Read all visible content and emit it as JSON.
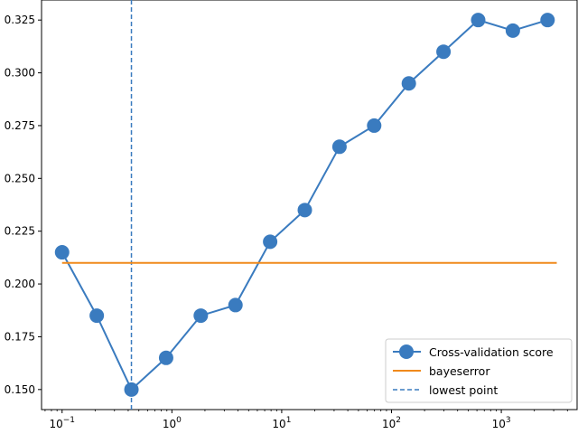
{
  "chart_data": {
    "type": "line",
    "xscale": "log",
    "xlim": [
      0.065,
      4900
    ],
    "ylim": [
      0.1405,
      0.3345
    ],
    "x_ticks": [
      {
        "value": 0.1,
        "base": "10",
        "exp": "−1"
      },
      {
        "value": 1,
        "base": "10",
        "exp": "0"
      },
      {
        "value": 10,
        "base": "10",
        "exp": "1"
      },
      {
        "value": 100,
        "base": "10",
        "exp": "2"
      },
      {
        "value": 1000,
        "base": "10",
        "exp": "3"
      }
    ],
    "y_ticks": [
      0.15,
      0.175,
      0.2,
      0.225,
      0.25,
      0.275,
      0.3,
      0.325
    ],
    "y_tick_labels": [
      "0.150",
      "0.175",
      "0.200",
      "0.225",
      "0.250",
      "0.275",
      "0.300",
      "0.325"
    ],
    "series": [
      {
        "name": "Cross-validation score",
        "color": "#3a7bbf",
        "x": [
          0.1,
          0.2069,
          0.4281,
          0.8859,
          1.833,
          3.793,
          7.848,
          16.24,
          33.6,
          69.52,
          143.8,
          297.6,
          615.8,
          1274,
          2637
        ],
        "y": [
          0.215,
          0.185,
          0.15,
          0.165,
          0.185,
          0.19,
          0.22,
          0.235,
          0.265,
          0.275,
          0.295,
          0.31,
          0.325,
          0.32,
          0.325
        ]
      },
      {
        "name": "bayeserror",
        "color": "#f08a1c",
        "x": [
          0.1,
          3200
        ],
        "y": [
          0.21,
          0.21
        ]
      },
      {
        "name": "lowest point",
        "color": "#3a7bbf",
        "style": "dashed-vertical",
        "x_value": 0.4281
      }
    ],
    "legend_placement": "lower-right",
    "grid": false
  }
}
